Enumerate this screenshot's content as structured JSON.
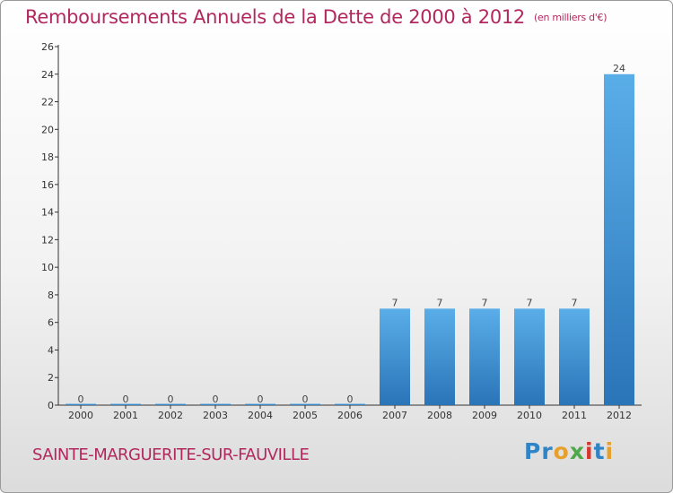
{
  "title": "Remboursements Annuels de la Dette de 2000 à 2012",
  "subtitle": "(en milliers d'€)",
  "commune": "SAINTE-MARGUERITE-SUR-FAUVILLE",
  "logo": {
    "letters": [
      "P",
      "r",
      "o",
      "x",
      "i",
      "t",
      "i"
    ],
    "colors": [
      "#2f84c6",
      "#2f84c6",
      "#e7a02a",
      "#4fa84a",
      "#d6362c",
      "#2f84c6",
      "#e7a02a"
    ]
  },
  "colors": {
    "title": "#b2285e",
    "bar_top": "#5aaee8",
    "bar_bottom": "#2a74b8",
    "axis": "#333333"
  },
  "chart_data": {
    "type": "bar",
    "categories": [
      "2000",
      "2001",
      "2002",
      "2003",
      "2004",
      "2005",
      "2006",
      "2007",
      "2008",
      "2009",
      "2010",
      "2011",
      "2012"
    ],
    "values": [
      0,
      0,
      0,
      0,
      0,
      0,
      0,
      7,
      7,
      7,
      7,
      7,
      24
    ],
    "data_labels": [
      "0",
      "0",
      "0",
      "0",
      "0",
      "0",
      "0",
      "7",
      "7",
      "7",
      "7",
      "7",
      "24"
    ],
    "ylim": [
      0,
      26
    ],
    "yticks": [
      0,
      2,
      4,
      6,
      8,
      10,
      12,
      14,
      16,
      18,
      20,
      22,
      24,
      26
    ],
    "grid": false,
    "legend": "none"
  }
}
